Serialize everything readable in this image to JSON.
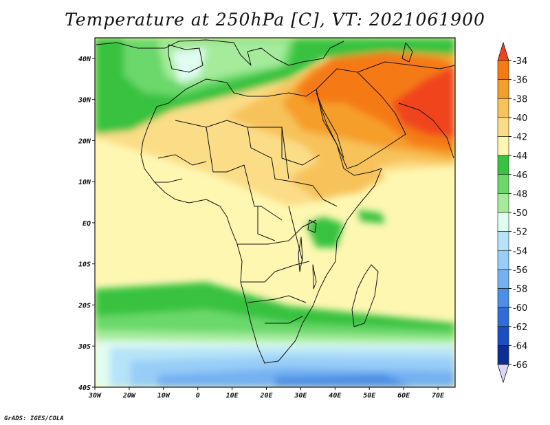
{
  "title": "Temperature at 250hPa [C], VT: 2021061900",
  "credit": "GrADS: IGES/COLA",
  "map": {
    "lon_range": [
      -30,
      75
    ],
    "lat_range": [
      -40,
      45
    ],
    "lon_ticks": [
      "30W",
      "20W",
      "10W",
      "0",
      "10E",
      "20E",
      "30E",
      "40E",
      "50E",
      "60E",
      "70E"
    ],
    "lat_ticks": [
      "40N",
      "30N",
      "20N",
      "10N",
      "EQ",
      "10S",
      "20S",
      "30S",
      "40S"
    ]
  },
  "colorbar": {
    "labels": [
      "-34",
      "-36",
      "-38",
      "-40",
      "-42",
      "-44",
      "-46",
      "-48",
      "-50",
      "-52",
      "-54",
      "-56",
      "-58",
      "-60",
      "-62",
      "-64",
      "-66"
    ],
    "colors": [
      "#f0441e",
      "#f57a12",
      "#f59f2b",
      "#f7c25a",
      "#fbdd87",
      "#fef7b2",
      "#37c23f",
      "#6bd86a",
      "#a5eb9b",
      "#e1fcf1",
      "#b6e3f8",
      "#97cdf7",
      "#73b1f2",
      "#4d8fe6",
      "#2f6ed9",
      "#1a4fc2",
      "#0d2d93",
      "#07137a"
    ]
  }
}
